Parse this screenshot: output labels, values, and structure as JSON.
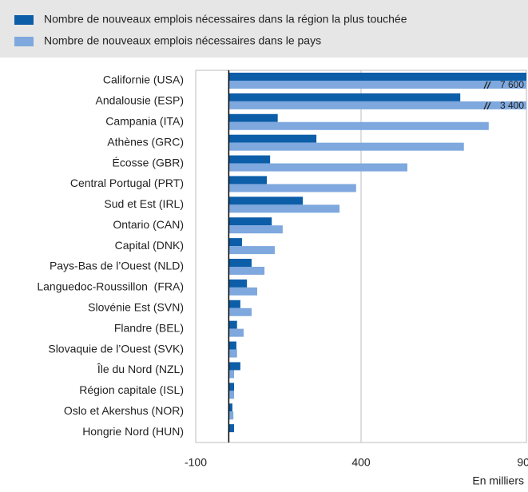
{
  "chart_data": {
    "type": "bar",
    "orientation": "horizontal",
    "categories": [
      "Californie (USA)",
      "Andalousie (ESP)",
      "Campania (ITA)",
      "Athènes (GRC)",
      "Écosse (GBR)",
      "Central Portugal (PRT)",
      "Sud et Est (IRL)",
      "Ontario (CAN)",
      "Capital (DNK)",
      "Pays-Bas de l’Ouest (NLD)",
      "Languedoc-Roussillon  (FRA)",
      "Slovénie Est (SVN)",
      "Flandre (BEL)",
      "Slovaquie de l’Ouest (SVK)",
      "Île du Nord (NZL)",
      "Région capitale (ISL)",
      "Oslo et Akershus (NOR)",
      "Hongrie Nord (HUN)"
    ],
    "series": [
      {
        "name": "Nombre de nouveaux emplois nécessaires dans la région la plus touchée",
        "color": "#0d5ea8",
        "values": [
          1000,
          700,
          148,
          265,
          125,
          115,
          224,
          130,
          40,
          69,
          55,
          35,
          25,
          23,
          35,
          16,
          11,
          16
        ]
      },
      {
        "name": "Nombre de nouveaux emplois nécessaires dans le pays",
        "color": "#7ea8de",
        "values": [
          7600,
          3400,
          786,
          711,
          540,
          385,
          335,
          163,
          139,
          108,
          86,
          69,
          45,
          25,
          16,
          16,
          14,
          null
        ],
        "value_labels": [
          "7 600",
          "3 400",
          null,
          null,
          null,
          null,
          null,
          null,
          null,
          null,
          null,
          null,
          null,
          null,
          null,
          null,
          null,
          null
        ]
      }
    ],
    "xlim": [
      -100,
      900
    ],
    "xticks": [
      -100,
      400,
      900
    ],
    "xlabel": "En milliers",
    "grid": true
  }
}
